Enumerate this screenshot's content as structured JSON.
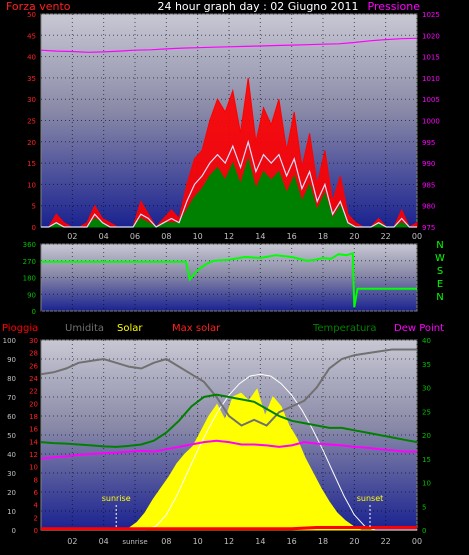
{
  "header": {
    "title": "24 hour graph day : 02 Giugno 2011",
    "left_label": "Forza vento",
    "right_label": "Pressione"
  },
  "colors": {
    "wind": "#ff0000",
    "wind_avg": "#008000",
    "gust_line": "#e0e0ff",
    "pressure": "#ff00ff",
    "direction": "#00ff00",
    "rain": "#ff0000",
    "humidity": "#707070",
    "solar": "#ffff00",
    "max_solar": "#ffffff",
    "temperature": "#008000",
    "dewpoint": "#ff00ff",
    "tick_green": "#00c000",
    "tick_red": "#ff2020",
    "tick_magenta": "#ff00ff",
    "axis_text": "#c0c0c0"
  },
  "chart_data": [
    {
      "type": "line",
      "name": "wind-pressure",
      "x_ticks": [
        "02",
        "04",
        "06",
        "08",
        "10",
        "12",
        "14",
        "16",
        "18",
        "20",
        "22",
        "00"
      ],
      "y_left_ticks": [
        "0",
        "5",
        "10",
        "15",
        "20",
        "25",
        "30",
        "35",
        "40",
        "45",
        "50"
      ],
      "y_right_ticks": [
        "975",
        "980",
        "985",
        "990",
        "995",
        "1000",
        "1005",
        "1010",
        "1015",
        "1020",
        "1025"
      ],
      "ylim_left": [
        0,
        50
      ],
      "ylim_right": [
        975,
        1025
      ],
      "series": [
        {
          "key": "pressure",
          "axis": "right",
          "values": [
            1016.5,
            1016.3,
            1016.2,
            1016.0,
            1016.1,
            1016.3,
            1016.5,
            1016.6,
            1016.8,
            1017.0,
            1017.1,
            1017.2,
            1017.3,
            1017.4,
            1017.5,
            1017.6,
            1017.7,
            1017.8,
            1017.9,
            1018.0,
            1018.3,
            1018.7,
            1019.0,
            1019.2,
            1019.3
          ]
        },
        {
          "key": "wind",
          "axis": "left",
          "values": [
            0,
            0,
            3,
            1,
            0,
            0,
            1,
            5,
            2,
            1,
            0,
            0,
            0,
            6,
            3,
            0,
            2,
            4,
            2,
            10,
            16,
            18,
            25,
            30,
            27,
            32,
            22,
            35,
            20,
            28,
            24,
            30,
            18,
            27,
            14,
            22,
            10,
            18,
            6,
            12,
            3,
            1,
            0,
            0,
            2,
            0,
            0,
            4,
            0,
            1
          ]
        },
        {
          "key": "wind_avg",
          "axis": "left",
          "values": [
            0,
            0,
            1,
            0,
            0,
            0,
            0,
            2,
            1,
            0,
            0,
            0,
            0,
            2,
            1,
            0,
            1,
            1,
            1,
            4,
            7,
            9,
            12,
            14,
            11,
            15,
            10,
            16,
            9,
            13,
            11,
            13,
            8,
            12,
            6,
            10,
            4,
            8,
            2,
            5,
            1,
            0,
            0,
            0,
            1,
            0,
            0,
            1,
            0,
            0
          ]
        },
        {
          "key": "gust_line",
          "axis": "left",
          "values": [
            0,
            0,
            1,
            0,
            0,
            0,
            0,
            3,
            1,
            0,
            0,
            0,
            0,
            3,
            2,
            0,
            1,
            2,
            1,
            6,
            10,
            12,
            15,
            17,
            15,
            19,
            14,
            20,
            13,
            17,
            15,
            17,
            12,
            16,
            9,
            13,
            6,
            10,
            3,
            6,
            1,
            0,
            0,
            0,
            1,
            0,
            0,
            2,
            0,
            0
          ]
        }
      ]
    },
    {
      "type": "line",
      "name": "wind-direction",
      "x_ticks": [],
      "y_left_ticks": [
        "0",
        "90",
        "180",
        "270",
        "360"
      ],
      "ylim": [
        0,
        360
      ],
      "compass": [
        "N",
        "W",
        "S",
        "E",
        "N"
      ],
      "series": [
        {
          "key": "direction",
          "x": [
            0,
            9.2,
            9.25,
            9.5,
            9.8,
            10.0,
            10.5,
            11,
            12,
            13,
            14,
            15,
            16,
            17,
            17.5,
            18,
            18.5,
            19,
            19.5,
            19.9,
            20.0,
            20.2,
            20.5,
            21,
            21.5,
            22,
            22.5,
            23,
            24
          ],
          "values": [
            265,
            265,
            265,
            170,
            200,
            220,
            250,
            270,
            275,
            290,
            285,
            300,
            290,
            270,
            275,
            285,
            280,
            305,
            300,
            310,
            20,
            120,
            120,
            120,
            120,
            120,
            120,
            120,
            120
          ]
        }
      ]
    },
    {
      "type": "area",
      "name": "rain-solar-temp",
      "legend": [
        "Pioggia",
        "Umidita",
        "Solar",
        "Max solar",
        "Temperatura",
        "Dew Point"
      ],
      "x_ticks": [
        "02",
        "04",
        "06",
        "08",
        "10",
        "12",
        "14",
        "16",
        "18",
        "20",
        "22",
        "00"
      ],
      "x_annotations": {
        "sunrise": "sunrise"
      },
      "y_hum_ticks": [
        "0",
        "10",
        "20",
        "30",
        "40",
        "50",
        "60",
        "70",
        "80",
        "90",
        "100"
      ],
      "y_rain_ticks": [
        "0",
        "2",
        "4",
        "6",
        "8",
        "10",
        "12",
        "14",
        "16",
        "18",
        "20",
        "22",
        "24",
        "26",
        "28",
        "30"
      ],
      "y_temp_ticks": [
        "0",
        "5",
        "10",
        "15",
        "20",
        "25",
        "30",
        "35",
        "40"
      ],
      "annotations": {
        "sunrise": "sunrise",
        "sunset": "sunset"
      },
      "series": [
        {
          "key": "humidity",
          "axis": "hum",
          "values": [
            82,
            83,
            85,
            88,
            89,
            90,
            88,
            86,
            85,
            88,
            90,
            86,
            82,
            78,
            70,
            60,
            55,
            58,
            55,
            62,
            65,
            68,
            75,
            85,
            90,
            92,
            93,
            94,
            95,
            95,
            95
          ]
        },
        {
          "key": "temperature",
          "axis": "temp",
          "values": [
            18.5,
            18.3,
            18.2,
            18.0,
            17.8,
            17.6,
            17.5,
            17.7,
            18.0,
            18.8,
            20.5,
            23,
            26,
            28,
            28.5,
            28,
            27.5,
            27,
            25.5,
            24,
            23,
            22.5,
            22,
            21.5,
            21.5,
            21,
            20.5,
            20,
            19.5,
            19,
            18.5
          ]
        },
        {
          "key": "dewpoint",
          "axis": "temp",
          "values": [
            15,
            15.3,
            15.5,
            15.8,
            16,
            16.2,
            16.3,
            16.5,
            16.7,
            16.5,
            17,
            17.5,
            18,
            18.5,
            18.8,
            18.5,
            18,
            18,
            17.8,
            17.5,
            17.8,
            18.5,
            18.2,
            18,
            17.8,
            17.5,
            17.3,
            17,
            16.8,
            16.5,
            16.5
          ]
        },
        {
          "key": "solar",
          "axis": "hum",
          "values": [
            0,
            0,
            0,
            0,
            0,
            0,
            0,
            0,
            0,
            0,
            0,
            1,
            4,
            9,
            16,
            22,
            28,
            35,
            40,
            44,
            52,
            60,
            66,
            58,
            70,
            72,
            68,
            74,
            60,
            70,
            65,
            55,
            48,
            38,
            30,
            22,
            15,
            9,
            5,
            2,
            0,
            0,
            0,
            0,
            0,
            0,
            0,
            0
          ]
        },
        {
          "key": "max_solar",
          "axis": "hum",
          "values": [
            0,
            0,
            0,
            0,
            0,
            0,
            0,
            0,
            0,
            0,
            0,
            2,
            8,
            18,
            30,
            42,
            53,
            63,
            71,
            77,
            81,
            82,
            81,
            77,
            71,
            63,
            53,
            42,
            30,
            18,
            8,
            2,
            0,
            0,
            0,
            0,
            0
          ]
        },
        {
          "key": "rain",
          "axis": "rain",
          "values": [
            0.2,
            0.2,
            0.2,
            0.2,
            0.2,
            0.2,
            0.2,
            0.2,
            0.2,
            0.2,
            0.2,
            0.2,
            0.2,
            0.2,
            0.2,
            0.2,
            0.2,
            0.2,
            0.2,
            0.2,
            0.2,
            0.3,
            0.4,
            0.4,
            0.4,
            0.4,
            0.4,
            0.4,
            0.4,
            0.4,
            0.4
          ]
        }
      ]
    }
  ]
}
